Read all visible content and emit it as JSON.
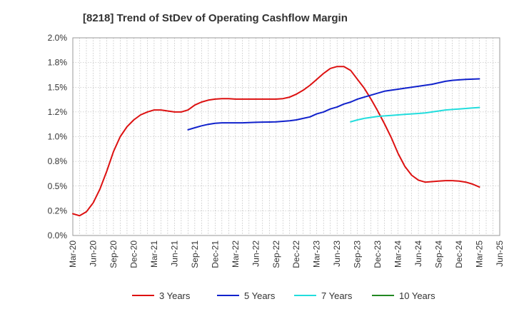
{
  "chart_data": {
    "type": "line",
    "title": "[8218]  Trend of StDev of Operating Cashflow Margin",
    "xlabel": "",
    "ylabel": "",
    "x_ticks": [
      "Mar-20",
      "Jun-20",
      "Sep-20",
      "Dec-20",
      "Mar-21",
      "Jun-21",
      "Sep-21",
      "Dec-21",
      "Mar-22",
      "Jun-22",
      "Sep-22",
      "Dec-22",
      "Mar-23",
      "Jun-23",
      "Sep-23",
      "Dec-23",
      "Mar-24",
      "Jun-24",
      "Sep-24",
      "Dec-24",
      "Mar-25",
      "Jun-25"
    ],
    "y_ticks": [
      "0.0%",
      "0.2%",
      "0.5%",
      "0.8%",
      "1.0%",
      "1.2%",
      "1.5%",
      "1.8%",
      "2.0%"
    ],
    "ylim": [
      0,
      2.0
    ],
    "grid": true,
    "legend_position": "bottom",
    "series": [
      {
        "name": "3 Years",
        "color": "#dd1111",
        "x": [
          "Mar-20",
          "Apr-20",
          "May-20",
          "Jun-20",
          "Jul-20",
          "Aug-20",
          "Sep-20",
          "Oct-20",
          "Nov-20",
          "Dec-20",
          "Jan-21",
          "Feb-21",
          "Mar-21",
          "Apr-21",
          "May-21",
          "Jun-21",
          "Jul-21",
          "Aug-21",
          "Sep-21",
          "Oct-21",
          "Nov-21",
          "Dec-21",
          "Jan-22",
          "Feb-22",
          "Mar-22",
          "Apr-22",
          "May-22",
          "Jun-22",
          "Jul-22",
          "Aug-22",
          "Sep-22",
          "Oct-22",
          "Nov-22",
          "Dec-22",
          "Jan-23",
          "Feb-23",
          "Mar-23",
          "Apr-23",
          "May-23",
          "Jun-23",
          "Jul-23",
          "Aug-23",
          "Sep-23",
          "Oct-23",
          "Nov-23",
          "Dec-23",
          "Jan-24",
          "Feb-24",
          "Mar-24",
          "Apr-24",
          "May-24",
          "Jun-24",
          "Jul-24",
          "Aug-24",
          "Sep-24",
          "Oct-24",
          "Nov-24",
          "Dec-24",
          "Jan-25",
          "Feb-25",
          "Mar-25"
        ],
        "y": [
          0.22,
          0.2,
          0.24,
          0.33,
          0.47,
          0.65,
          0.85,
          1.0,
          1.1,
          1.17,
          1.22,
          1.25,
          1.27,
          1.27,
          1.26,
          1.25,
          1.25,
          1.27,
          1.32,
          1.35,
          1.37,
          1.38,
          1.385,
          1.385,
          1.38,
          1.38,
          1.38,
          1.38,
          1.38,
          1.38,
          1.38,
          1.385,
          1.4,
          1.43,
          1.47,
          1.52,
          1.58,
          1.64,
          1.69,
          1.71,
          1.71,
          1.67,
          1.58,
          1.49,
          1.38,
          1.26,
          1.13,
          0.99,
          0.83,
          0.7,
          0.61,
          0.56,
          0.54,
          0.545,
          0.55,
          0.555,
          0.555,
          0.55,
          0.54,
          0.52,
          0.49
        ]
      },
      {
        "name": "5 Years",
        "color": "#1122cc",
        "x": [
          "Aug-21",
          "Sep-21",
          "Oct-21",
          "Nov-21",
          "Dec-21",
          "Jan-22",
          "Feb-22",
          "Mar-22",
          "Apr-22",
          "May-22",
          "Jun-22",
          "Jul-22",
          "Aug-22",
          "Sep-22",
          "Oct-22",
          "Nov-22",
          "Dec-22",
          "Jan-23",
          "Feb-23",
          "Mar-23",
          "Apr-23",
          "May-23",
          "Jun-23",
          "Jul-23",
          "Aug-23",
          "Sep-23",
          "Oct-23",
          "Nov-23",
          "Dec-23",
          "Jan-24",
          "Feb-24",
          "Mar-24",
          "Apr-24",
          "May-24",
          "Jun-24",
          "Jul-24",
          "Aug-24",
          "Sep-24",
          "Oct-24",
          "Nov-24",
          "Dec-24",
          "Jan-25",
          "Feb-25",
          "Mar-25"
        ],
        "y": [
          1.07,
          1.09,
          1.11,
          1.125,
          1.135,
          1.14,
          1.14,
          1.14,
          1.14,
          1.142,
          1.145,
          1.147,
          1.148,
          1.15,
          1.155,
          1.16,
          1.17,
          1.185,
          1.2,
          1.23,
          1.25,
          1.28,
          1.3,
          1.33,
          1.35,
          1.38,
          1.4,
          1.42,
          1.44,
          1.46,
          1.47,
          1.48,
          1.49,
          1.5,
          1.51,
          1.52,
          1.53,
          1.545,
          1.56,
          1.57,
          1.575,
          1.58,
          1.582,
          1.585
        ]
      },
      {
        "name": "7 Years",
        "color": "#22dddd",
        "x": [
          "Aug-23",
          "Sep-23",
          "Oct-23",
          "Nov-23",
          "Dec-23",
          "Jan-24",
          "Feb-24",
          "Mar-24",
          "Apr-24",
          "May-24",
          "Jun-24",
          "Jul-24",
          "Aug-24",
          "Sep-24",
          "Oct-24",
          "Nov-24",
          "Dec-24",
          "Jan-25",
          "Feb-25",
          "Mar-25"
        ],
        "y": [
          1.15,
          1.17,
          1.185,
          1.195,
          1.205,
          1.21,
          1.215,
          1.22,
          1.225,
          1.23,
          1.235,
          1.24,
          1.25,
          1.26,
          1.27,
          1.275,
          1.28,
          1.285,
          1.29,
          1.295
        ]
      },
      {
        "name": "10 Years",
        "color": "#228822",
        "x": [],
        "y": []
      }
    ]
  }
}
